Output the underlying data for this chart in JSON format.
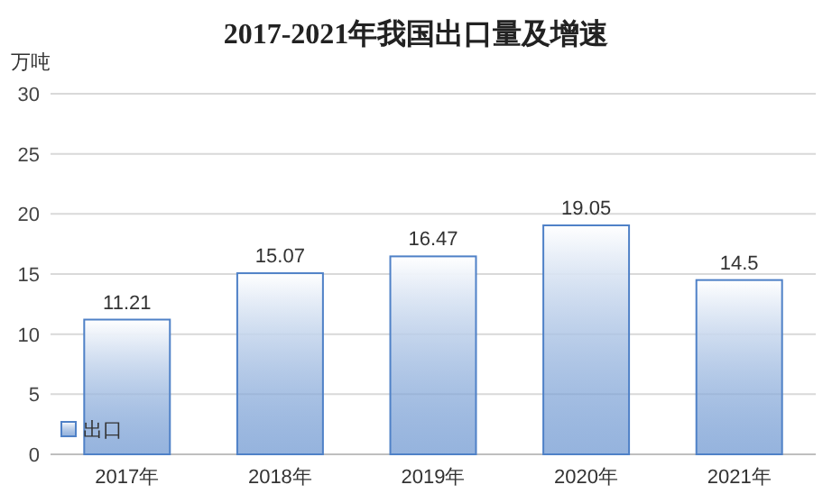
{
  "chart_data": {
    "type": "bar",
    "title": "2017-2021年我国出口量及增速",
    "ylabel": "万吨",
    "categories": [
      "2017年",
      "2018年",
      "2019年",
      "2020年",
      "2021年"
    ],
    "series": [
      {
        "name": "出口",
        "color": "#4f81c7",
        "values": [
          11.21,
          15.07,
          16.47,
          19.05,
          14.5
        ]
      }
    ],
    "ylim": [
      0,
      30
    ],
    "yticks": [
      0,
      5,
      10,
      15,
      20,
      25,
      30
    ],
    "grid": "y",
    "legend": "bottom left",
    "data_labels": true
  }
}
